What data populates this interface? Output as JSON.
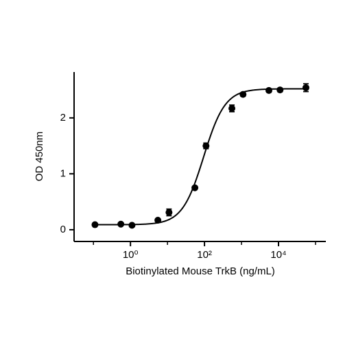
{
  "chart_data": {
    "type": "scatter",
    "x_label": "Biotinylated Mouse TrkB (ng/mL)",
    "y_label": "OD 450nm",
    "x": [
      0.11,
      0.55,
      1.1,
      5.5,
      11,
      55,
      110,
      550,
      1100,
      5500,
      11000,
      55000
    ],
    "values": [
      0.09,
      0.1,
      0.08,
      0.17,
      0.31,
      0.75,
      1.5,
      2.17,
      2.42,
      2.49,
      2.5,
      2.54
    ],
    "errors": [
      0.02,
      0.02,
      0.02,
      0.02,
      0.06,
      0.02,
      0.05,
      0.06,
      0.03,
      0.03,
      0.03,
      0.07
    ],
    "color": "#000000",
    "fit": {
      "bottom": 0.09,
      "top": 2.52,
      "ec50": 95,
      "hill": 1.5
    },
    "xscale": "log",
    "xlim": [
      0.03,
      190000
    ],
    "xticks": [
      {
        "value": 1,
        "label": "10⁰"
      },
      {
        "value": 100,
        "label": "10²"
      },
      {
        "value": 10000,
        "label": "10⁴"
      }
    ],
    "xminor_ticks": [
      0.1,
      10,
      1000,
      100000
    ],
    "ylim": [
      -0.21,
      2.82
    ],
    "yticks": [
      0,
      1,
      2
    ],
    "grid": false
  }
}
